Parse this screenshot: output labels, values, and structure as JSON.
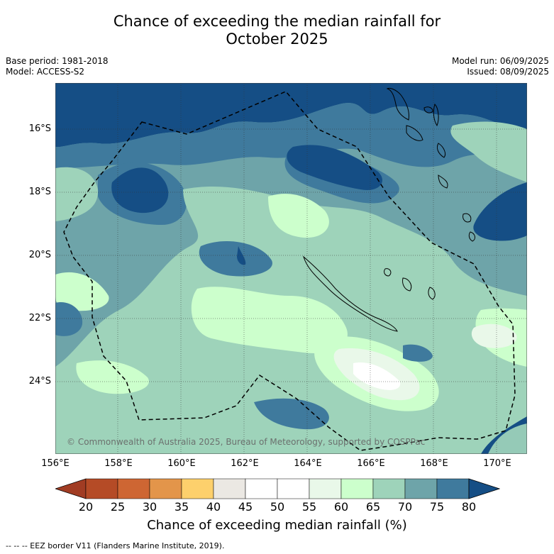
{
  "title_line1": "Chance of exceeding the median rainfall for",
  "title_line2": "October 2025",
  "meta_left": [
    "Base period: 1981-2018",
    "Model: ACCESS-S2"
  ],
  "meta_right": [
    "Model run: 06/09/2025",
    "Issued: 08/09/2025"
  ],
  "copyright": "© Commonwealth of Australia 2025, Bureau of Meteorology, supported by COSPPac",
  "lat_labels": [
    "16°S",
    "18°S",
    "20°S",
    "22°S",
    "24°S"
  ],
  "lon_labels": [
    "156°E",
    "158°E",
    "160°E",
    "162°E",
    "164°E",
    "166°E",
    "168°E",
    "170°E"
  ],
  "colorbar": {
    "ticks": [
      "20",
      "25",
      "30",
      "35",
      "40",
      "45",
      "50",
      "55",
      "60",
      "65",
      "70",
      "75",
      "80"
    ],
    "label": "Chance of exceeding median rainfall (%)",
    "colors": [
      "#a13c23",
      "#b54b26",
      "#ce6633",
      "#e3954a",
      "#fdd06c",
      "#ebe8e3",
      "#ffffff",
      "#ffffff",
      "#e9f8e9",
      "#ccffcc",
      "#9ed3ba",
      "#6ea4a9",
      "#3f7a9d",
      "#154e85"
    ]
  },
  "footnote": "-- -- -- EEZ border V11 (Flanders Marine Institute, 2019).",
  "map_colors": {
    "p80": "#154e85",
    "p75": "#3f7a9d",
    "p70": "#6ea4a9",
    "p65": "#9ed3ba",
    "p60": "#ccffcc",
    "p55": "#e9f8e9",
    "p50": "#ffffff"
  }
}
